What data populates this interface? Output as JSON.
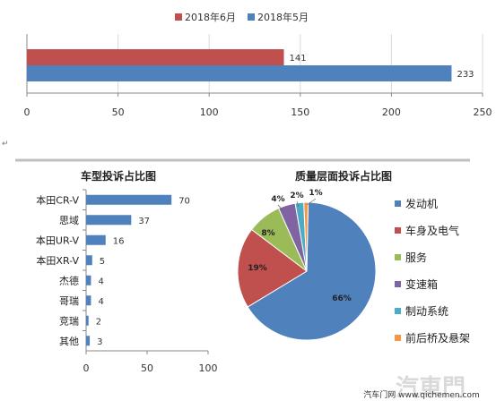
{
  "colors": {
    "red": "#c0504d",
    "blue": "#4f81bd",
    "green": "#9bbb59",
    "purple": "#8064a2",
    "teal": "#4bacc6",
    "orange": "#f79646",
    "axis": "#888888",
    "grid": "#d9d9d9",
    "panel_top": "#bfbfbf",
    "watermark": "#d0d0d0"
  },
  "return_mark": "↵",
  "footer": {
    "source": "汽车门网 www.qichemen.com",
    "watermark": "汽車門"
  },
  "chart_data": [
    {
      "type": "bar",
      "orientation": "horizontal",
      "title": "",
      "series": [
        {
          "name": "2018年6月",
          "values": [
            141
          ],
          "color": "red"
        },
        {
          "name": "2018年5月",
          "values": [
            233
          ],
          "color": "blue"
        }
      ],
      "data_labels": [
        "141",
        "233"
      ],
      "xlim": [
        0,
        250
      ],
      "x_ticks": [
        0,
        50,
        100,
        150,
        200,
        250
      ],
      "x_tick_labels": [
        "0",
        "50",
        "100",
        "150",
        "200",
        "250"
      ],
      "grid": true,
      "legend": "top"
    },
    {
      "type": "bar",
      "orientation": "horizontal",
      "title": "车型投诉占比图",
      "categories": [
        "本田CR-V",
        "思域",
        "本田UR-V",
        "本田XR-V",
        "杰德",
        "哥瑞",
        "竞瑞",
        "其他"
      ],
      "values": [
        70,
        37,
        16,
        5,
        4,
        4,
        2,
        3
      ],
      "value_labels": [
        "70",
        "37",
        "16",
        "5",
        "4",
        "4",
        "2",
        "3"
      ],
      "xlim": [
        0,
        100
      ],
      "x_ticks": [
        0,
        50,
        100
      ],
      "x_tick_labels": [
        "0",
        "50",
        "100"
      ],
      "grid": false,
      "color": "blue"
    },
    {
      "type": "pie",
      "title": "质量层面投诉占比图",
      "labels": [
        "发动机",
        "车身及电气",
        "服务",
        "变速箱",
        "制动系统",
        "前后桥及悬架"
      ],
      "values": [
        66,
        19,
        8,
        4,
        2,
        1
      ],
      "pct_labels": [
        "66%",
        "19%",
        "8%",
        "4%",
        "2%",
        "1%"
      ],
      "colors": [
        "blue",
        "red",
        "green",
        "purple",
        "teal",
        "orange"
      ],
      "legend": "right"
    }
  ]
}
